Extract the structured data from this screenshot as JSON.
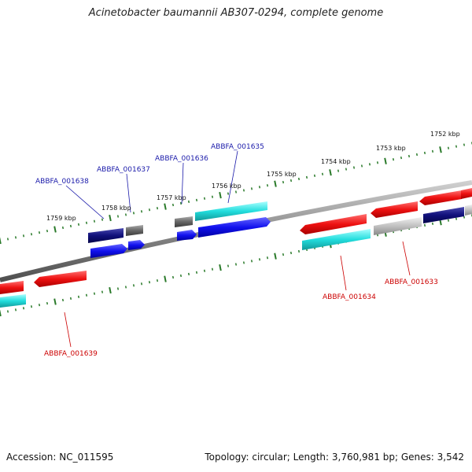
{
  "title": "Acinetobacter baumannii AB307-0294, complete genome",
  "footer": {
    "accession": "Accession: NC_011595",
    "topology": "Topology: circular; Length: 3,760,981 bp; Genes: 3,542"
  },
  "colors": {
    "backbone": "#7a7a7a",
    "tick": "#2a7a2a",
    "label_forward": "#1a1aaa",
    "label_reverse": "#cc0000",
    "red": "#ee1111",
    "cyan": "#22dddd",
    "blue": "#1111ee",
    "navy": "#10107a",
    "dark_gray": "#666666",
    "light_gray": "#c0c0c0"
  },
  "scale_labels": [
    "1752 kbp",
    "1753 kbp",
    "1754 kbp",
    "1755 kbp",
    "1756 kbp",
    "1757 kbp",
    "1758 kbp",
    "1759 kbp"
  ],
  "gene_labels": [
    {
      "text": "ABBFA_001635",
      "strand": "forward"
    },
    {
      "text": "ABBFA_001636",
      "strand": "forward"
    },
    {
      "text": "ABBFA_001637",
      "strand": "forward"
    },
    {
      "text": "ABBFA_001638",
      "strand": "forward"
    },
    {
      "text": "ABBFA_001633",
      "strand": "reverse"
    },
    {
      "text": "ABBFA_001634",
      "strand": "reverse"
    },
    {
      "text": "ABBFA_001639",
      "strand": "reverse"
    }
  ]
}
